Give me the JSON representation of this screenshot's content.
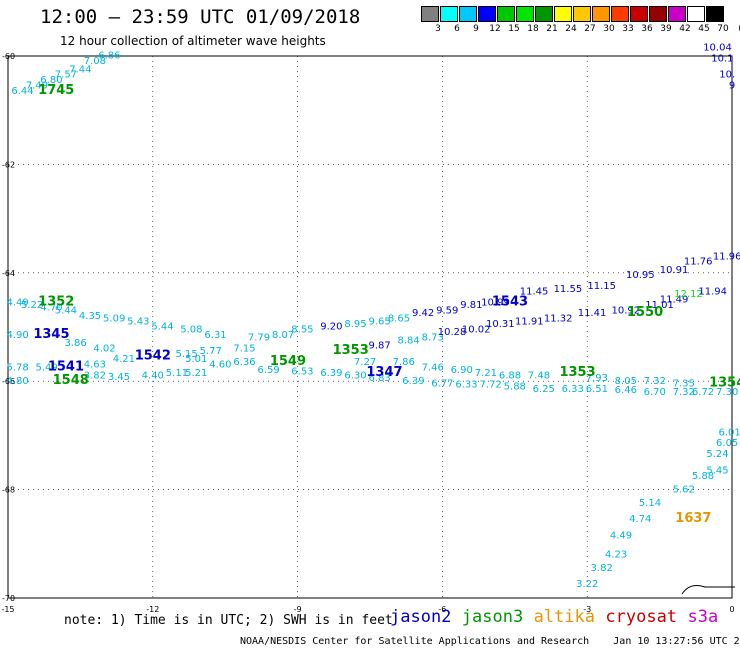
{
  "header": {
    "title": "12:00 – 23:59 UTC 01/09/2018",
    "subtitle": "12 hour collection of altimeter wave heights"
  },
  "colorbar": {
    "colors": [
      "#808080",
      "#00ffff",
      "#00c8ff",
      "#0000ff",
      "#00c800",
      "#00e600",
      "#009600",
      "#ffff00",
      "#ffc800",
      "#ff9600",
      "#ff3c00",
      "#c80000",
      "#960000",
      "#c800c8",
      "#ffffff",
      "#000000"
    ],
    "labels": [
      "3",
      "6",
      "9",
      "12",
      "15",
      "18",
      "21",
      "24",
      "27",
      "30",
      "33",
      "36",
      "39",
      "42",
      "45",
      "70",
      "(ft)"
    ]
  },
  "axes": {
    "lat_labels": [
      "-60",
      "-62",
      "-64",
      "-66",
      "-68",
      "-70"
    ],
    "lon_labels": [
      "-15",
      "-12",
      "-9",
      "-6",
      "-3",
      "0"
    ],
    "lat_range": [
      -70,
      -60
    ],
    "lon_range": [
      -15,
      0
    ]
  },
  "tracks": {
    "labels": [
      {
        "text": "1745",
        "color": "#009600",
        "lat": -60.7,
        "lon": -14.0
      },
      {
        "text": "1352",
        "color": "#009600",
        "lat": -64.6,
        "lon": -14.0
      },
      {
        "text": "1345",
        "color": "#0000c8",
        "lat": -65.2,
        "lon": -14.1
      },
      {
        "text": "1541",
        "color": "#0000c8",
        "lat": -65.8,
        "lon": -13.8
      },
      {
        "text": "1548",
        "color": "#009600",
        "lat": -66.05,
        "lon": -13.7
      },
      {
        "text": "1542",
        "color": "#0000c8",
        "lat": -65.6,
        "lon": -12.0
      },
      {
        "text": "1549",
        "color": "#009600",
        "lat": -65.7,
        "lon": -9.2
      },
      {
        "text": "1353",
        "color": "#009600",
        "lat": -65.5,
        "lon": -7.9
      },
      {
        "text": "1347",
        "color": "#0000c8",
        "lat": -65.9,
        "lon": -7.2
      },
      {
        "text": "1543",
        "color": "#0000c8",
        "lat": -64.6,
        "lon": -4.6
      },
      {
        "text": "1550",
        "color": "#009600",
        "lat": -64.8,
        "lon": -1.8
      },
      {
        "text": "1353",
        "color": "#009600",
        "lat": -65.9,
        "lon": -3.2
      },
      {
        "text": "1354",
        "color": "#009600",
        "lat": -66.1,
        "lon": -0.1
      },
      {
        "text": "1637",
        "color": "#e69600",
        "lat": -68.6,
        "lon": -0.8
      }
    ],
    "values": [
      {
        "t": "6.44",
        "c": "#00b4dc",
        "lat": -60.7,
        "lon": -14.7
      },
      {
        "t": "7.49",
        "c": "#00b4dc",
        "lat": -60.6,
        "lon": -14.4
      },
      {
        "t": "6.80",
        "c": "#00b4dc",
        "lat": -60.5,
        "lon": -14.1
      },
      {
        "t": "7.57",
        "c": "#00b4dc",
        "lat": -60.4,
        "lon": -13.8
      },
      {
        "t": "7.44",
        "c": "#00b4dc",
        "lat": -60.3,
        "lon": -13.5
      },
      {
        "t": "7.08",
        "c": "#00b4dc",
        "lat": -60.15,
        "lon": -13.2
      },
      {
        "t": "6.86",
        "c": "#00b4dc",
        "lat": -60.05,
        "lon": -12.9
      },
      {
        "t": "10.04",
        "c": "#0000c8",
        "lat": -59.9,
        "lon": -0.3
      },
      {
        "t": "10.1",
        "c": "#0000c8",
        "lat": -60.1,
        "lon": -0.2
      },
      {
        "t": "10.",
        "c": "#0000c8",
        "lat": -60.4,
        "lon": -0.1
      },
      {
        "t": "9",
        "c": "#0000c8",
        "lat": -60.6,
        "lon": 0.0
      },
      {
        "t": "4.49",
        "c": "#00b4dc",
        "lat": -64.6,
        "lon": -14.8
      },
      {
        "t": "5.22",
        "c": "#00b4dc",
        "lat": -64.65,
        "lon": -14.5
      },
      {
        "t": "4.70",
        "c": "#00b4dc",
        "lat": -64.7,
        "lon": -14.1
      },
      {
        "t": "5.44",
        "c": "#00b4dc",
        "lat": -64.75,
        "lon": -13.8
      },
      {
        "t": "4.35",
        "c": "#00b4dc",
        "lat": -64.85,
        "lon": -13.3
      },
      {
        "t": "5.09",
        "c": "#00b4dc",
        "lat": -64.9,
        "lon": -12.8
      },
      {
        "t": "5.43",
        "c": "#00b4dc",
        "lat": -64.95,
        "lon": -12.3
      },
      {
        "t": "5.44",
        "c": "#00b4dc",
        "lat": -65.05,
        "lon": -11.8
      },
      {
        "t": "5.08",
        "c": "#00b4dc",
        "lat": -65.1,
        "lon": -11.2
      },
      {
        "t": "6.31",
        "c": "#00b4dc",
        "lat": -65.2,
        "lon": -10.7
      },
      {
        "t": "7.79",
        "c": "#00b4dc",
        "lat": -65.25,
        "lon": -9.8
      },
      {
        "t": "8.07",
        "c": "#00b4dc",
        "lat": -65.2,
        "lon": -9.3
      },
      {
        "t": "8.55",
        "c": "#00b4dc",
        "lat": -65.1,
        "lon": -8.9
      },
      {
        "t": "9.20",
        "c": "#0000c8",
        "lat": -65.05,
        "lon": -8.3
      },
      {
        "t": "8.95",
        "c": "#00b4dc",
        "lat": -65.0,
        "lon": -7.8
      },
      {
        "t": "9.65",
        "c": "#00b4dc",
        "lat": -64.95,
        "lon": -7.3
      },
      {
        "t": "8.65",
        "c": "#00b4dc",
        "lat": -64.9,
        "lon": -6.9
      },
      {
        "t": "9.42",
        "c": "#0000c8",
        "lat": -64.8,
        "lon": -6.4
      },
      {
        "t": "9.59",
        "c": "#0000c8",
        "lat": -64.75,
        "lon": -5.9
      },
      {
        "t": "9.81",
        "c": "#0000c8",
        "lat": -64.65,
        "lon": -5.4
      },
      {
        "t": "10.99",
        "c": "#0000c8",
        "lat": -64.6,
        "lon": -4.9
      },
      {
        "t": "11.45",
        "c": "#0000c8",
        "lat": -64.4,
        "lon": -4.1
      },
      {
        "t": "11.55",
        "c": "#0000c8",
        "lat": -64.35,
        "lon": -3.4
      },
      {
        "t": "11.15",
        "c": "#0000c8",
        "lat": -64.3,
        "lon": -2.7
      },
      {
        "t": "10.95",
        "c": "#0000c8",
        "lat": -64.1,
        "lon": -1.9
      },
      {
        "t": "10.91",
        "c": "#0000c8",
        "lat": -64.0,
        "lon": -1.2
      },
      {
        "t": "11.76",
        "c": "#0000c8",
        "lat": -63.85,
        "lon": -0.7
      },
      {
        "t": "11.96",
        "c": "#0000c8",
        "lat": -63.75,
        "lon": -0.1
      },
      {
        "t": "4.90",
        "c": "#00b4dc",
        "lat": -65.2,
        "lon": -14.8
      },
      {
        "t": "3.86",
        "c": "#00b4dc",
        "lat": -65.35,
        "lon": -13.6
      },
      {
        "t": "4.02",
        "c": "#00b4dc",
        "lat": -65.45,
        "lon": -13.0
      },
      {
        "t": "5.15",
        "c": "#00b4dc",
        "lat": -65.55,
        "lon": -11.3
      },
      {
        "t": "5.77",
        "c": "#00b4dc",
        "lat": -65.5,
        "lon": -10.8
      },
      {
        "t": "7.15",
        "c": "#00b4dc",
        "lat": -65.45,
        "lon": -10.1
      },
      {
        "t": "9.87",
        "c": "#0000c8",
        "lat": -65.4,
        "lon": -7.3
      },
      {
        "t": "8.84",
        "c": "#00b4dc",
        "lat": -65.3,
        "lon": -6.7
      },
      {
        "t": "8.73",
        "c": "#00b4dc",
        "lat": -65.25,
        "lon": -6.2
      },
      {
        "t": "10.28",
        "c": "#0000c8",
        "lat": -65.15,
        "lon": -5.8
      },
      {
        "t": "10.02",
        "c": "#0000c8",
        "lat": -65.1,
        "lon": -5.3
      },
      {
        "t": "10.31",
        "c": "#0000c8",
        "lat": -65.0,
        "lon": -4.8
      },
      {
        "t": "11.91",
        "c": "#0000c8",
        "lat": -64.95,
        "lon": -4.2
      },
      {
        "t": "11.32",
        "c": "#0000c8",
        "lat": -64.9,
        "lon": -3.6
      },
      {
        "t": "11.41",
        "c": "#0000c8",
        "lat": -64.8,
        "lon": -2.9
      },
      {
        "t": "10.92",
        "c": "#0000c8",
        "lat": -64.75,
        "lon": -2.2
      },
      {
        "t": "11.01",
        "c": "#0000c8",
        "lat": -64.65,
        "lon": -1.5
      },
      {
        "t": "11.49",
        "c": "#0000c8",
        "lat": -64.55,
        "lon": -1.2
      },
      {
        "t": "12.12",
        "c": "#00e600",
        "lat": -64.45,
        "lon": -0.9
      },
      {
        "t": "11.94",
        "c": "#0000c8",
        "lat": -64.4,
        "lon": -0.4
      },
      {
        "t": "5.78",
        "c": "#00b4dc",
        "lat": -65.8,
        "lon": -14.8
      },
      {
        "t": "4.80",
        "c": "#00b4dc",
        "lat": -66.05,
        "lon": -14.8
      },
      {
        "t": "5.49",
        "c": "#00b4dc",
        "lat": -65.8,
        "lon": -14.2
      },
      {
        "t": "4.63",
        "c": "#00b4dc",
        "lat": -65.75,
        "lon": -13.2
      },
      {
        "t": "4.21",
        "c": "#00b4dc",
        "lat": -65.65,
        "lon": -12.6
      },
      {
        "t": "3.82",
        "c": "#00b4dc",
        "lat": -65.95,
        "lon": -13.2
      },
      {
        "t": "3.45",
        "c": "#00b4dc",
        "lat": -65.98,
        "lon": -12.7
      },
      {
        "t": "4.40",
        "c": "#00b4dc",
        "lat": -65.95,
        "lon": -12.0
      },
      {
        "t": "5.11",
        "c": "#00b4dc",
        "lat": -65.9,
        "lon": -11.5
      },
      {
        "t": "5.21",
        "c": "#00b4dc",
        "lat": -65.9,
        "lon": -11.1
      },
      {
        "t": "5.01",
        "c": "#00b4dc",
        "lat": -65.65,
        "lon": -11.1
      },
      {
        "t": "4.60",
        "c": "#00b4dc",
        "lat": -65.75,
        "lon": -10.6
      },
      {
        "t": "6.36",
        "c": "#00b4dc",
        "lat": -65.7,
        "lon": -10.1
      },
      {
        "t": "6.59",
        "c": "#00b4dc",
        "lat": -65.85,
        "lon": -9.6
      },
      {
        "t": "6.53",
        "c": "#00b4dc",
        "lat": -65.88,
        "lon": -8.9
      },
      {
        "t": "6.39",
        "c": "#00b4dc",
        "lat": -65.9,
        "lon": -8.3
      },
      {
        "t": "6.30",
        "c": "#00b4dc",
        "lat": -65.95,
        "lon": -7.8
      },
      {
        "t": "6.83",
        "c": "#00b4dc",
        "lat": -66.0,
        "lon": -7.3
      },
      {
        "t": "6.39",
        "c": "#00b4dc",
        "lat": -66.05,
        "lon": -6.6
      },
      {
        "t": "6.77",
        "c": "#00b4dc",
        "lat": -66.1,
        "lon": -6.0
      },
      {
        "t": "6.33",
        "c": "#00b4dc",
        "lat": -66.12,
        "lon": -5.5
      },
      {
        "t": "7.72",
        "c": "#00b4dc",
        "lat": -66.12,
        "lon": -5.0
      },
      {
        "t": "5.88",
        "c": "#00b4dc",
        "lat": -66.15,
        "lon": -4.5
      },
      {
        "t": "6.25",
        "c": "#00b4dc",
        "lat": -66.2,
        "lon": -3.9
      },
      {
        "t": "6.33",
        "c": "#00b4dc",
        "lat": -66.2,
        "lon": -3.3
      },
      {
        "t": "6.51",
        "c": "#00b4dc",
        "lat": -66.2,
        "lon": -2.8
      },
      {
        "t": "6.46",
        "c": "#00b4dc",
        "lat": -66.22,
        "lon": -2.2
      },
      {
        "t": "6.70",
        "c": "#00b4dc",
        "lat": -66.25,
        "lon": -1.6
      },
      {
        "t": "7.32",
        "c": "#00b4dc",
        "lat": -66.25,
        "lon": -1.0
      },
      {
        "t": "6.72",
        "c": "#00b4dc",
        "lat": -66.25,
        "lon": -0.6
      },
      {
        "t": "7.30",
        "c": "#00b4dc",
        "lat": -66.25,
        "lon": -0.1
      },
      {
        "t": "7.27",
        "c": "#00b4dc",
        "lat": -65.7,
        "lon": -7.6
      },
      {
        "t": "7.86",
        "c": "#00b4dc",
        "lat": -65.7,
        "lon": -6.8
      },
      {
        "t": "7.46",
        "c": "#00b4dc",
        "lat": -65.8,
        "lon": -6.2
      },
      {
        "t": "6.90",
        "c": "#00b4dc",
        "lat": -65.85,
        "lon": -5.6
      },
      {
        "t": "7.21",
        "c": "#00b4dc",
        "lat": -65.9,
        "lon": -5.1
      },
      {
        "t": "6.88",
        "c": "#00b4dc",
        "lat": -65.95,
        "lon": -4.6
      },
      {
        "t": "7.48",
        "c": "#00b4dc",
        "lat": -65.95,
        "lon": -4.0
      },
      {
        "t": "7.93",
        "c": "#00b4dc",
        "lat": -66.0,
        "lon": -2.8
      },
      {
        "t": "8.05",
        "c": "#00b4dc",
        "lat": -66.05,
        "lon": -2.2
      },
      {
        "t": "7.32",
        "c": "#00b4dc",
        "lat": -66.05,
        "lon": -1.6
      },
      {
        "t": "7.35",
        "c": "#00b4dc",
        "lat": -66.1,
        "lon": -1.0
      },
      {
        "t": "6.05",
        "c": "#00b4dc",
        "lat": -67.2,
        "lon": -0.1
      },
      {
        "t": "5.24",
        "c": "#00b4dc",
        "lat": -67.4,
        "lon": -0.3
      },
      {
        "t": "5.45",
        "c": "#00b4dc",
        "lat": -67.7,
        "lon": -0.3
      },
      {
        "t": "5.88",
        "c": "#00b4dc",
        "lat": -67.8,
        "lon": -0.6
      },
      {
        "t": "5.62",
        "c": "#00b4dc",
        "lat": -68.05,
        "lon": -1.0
      },
      {
        "t": "5.14",
        "c": "#00b4dc",
        "lat": -68.3,
        "lon": -1.7
      },
      {
        "t": "4.74",
        "c": "#00b4dc",
        "lat": -68.6,
        "lon": -1.9
      },
      {
        "t": "4.49",
        "c": "#00b4dc",
        "lat": -68.9,
        "lon": -2.3
      },
      {
        "t": "4.23",
        "c": "#00b4dc",
        "lat": -69.25,
        "lon": -2.4
      },
      {
        "t": "3.82",
        "c": "#00b4dc",
        "lat": -69.5,
        "lon": -2.7
      },
      {
        "t": "3.22",
        "c": "#00b4dc",
        "lat": -69.8,
        "lon": -3.0
      },
      {
        "t": "6.01",
        "c": "#00b4dc",
        "lat": -67.0,
        "lon": -0.05
      }
    ]
  },
  "note": "note: 1) Time is in UTC; 2) SWH is in feet",
  "legend": [
    {
      "name": "jason2",
      "color": "#0000c8"
    },
    {
      "name": "jason3",
      "color": "#009600"
    },
    {
      "name": "altika",
      "color": "#e69600"
    },
    {
      "name": "cryosat",
      "color": "#c80000"
    },
    {
      "name": "s3a",
      "color": "#c800c8"
    }
  ],
  "footer": "NOAA/NESDIS Center for Satellite Applications and Research    Jan 10 13:27:56 UTC 2018"
}
